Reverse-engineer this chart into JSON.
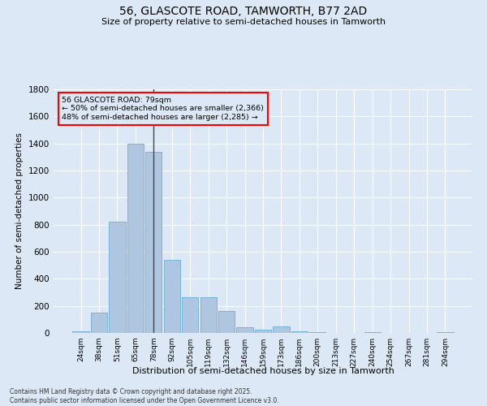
{
  "title_line1": "56, GLASCOTE ROAD, TAMWORTH, B77 2AD",
  "title_line2": "Size of property relative to semi-detached houses in Tamworth",
  "xlabel": "Distribution of semi-detached houses by size in Tamworth",
  "ylabel": "Number of semi-detached properties",
  "categories": [
    "24sqm",
    "38sqm",
    "51sqm",
    "65sqm",
    "78sqm",
    "92sqm",
    "105sqm",
    "119sqm",
    "132sqm",
    "146sqm",
    "159sqm",
    "173sqm",
    "186sqm",
    "200sqm",
    "213sqm",
    "227sqm",
    "240sqm",
    "254sqm",
    "267sqm",
    "281sqm",
    "294sqm"
  ],
  "values": [
    10,
    150,
    820,
    1400,
    1340,
    540,
    265,
    265,
    160,
    45,
    25,
    50,
    15,
    5,
    2,
    2,
    8,
    2,
    2,
    2,
    8
  ],
  "bar_color": "#aec6e0",
  "bar_edge_color": "#6baed6",
  "vline_x_index": 4.5,
  "vline_color": "#444444",
  "annotation_text_line1": "56 GLASCOTE ROAD: 79sqm",
  "annotation_text_line2": "← 50% of semi-detached houses are smaller (2,366)",
  "annotation_text_line3": "48% of semi-detached houses are larger (2,285) →",
  "annotation_color": "red",
  "background_color": "#dce8f5",
  "grid_color": "#ffffff",
  "footer_text": "Contains HM Land Registry data © Crown copyright and database right 2025.\nContains public sector information licensed under the Open Government Licence v3.0.",
  "ylim": [
    0,
    1800
  ],
  "yticks": [
    0,
    200,
    400,
    600,
    800,
    1000,
    1200,
    1400,
    1600,
    1800
  ]
}
